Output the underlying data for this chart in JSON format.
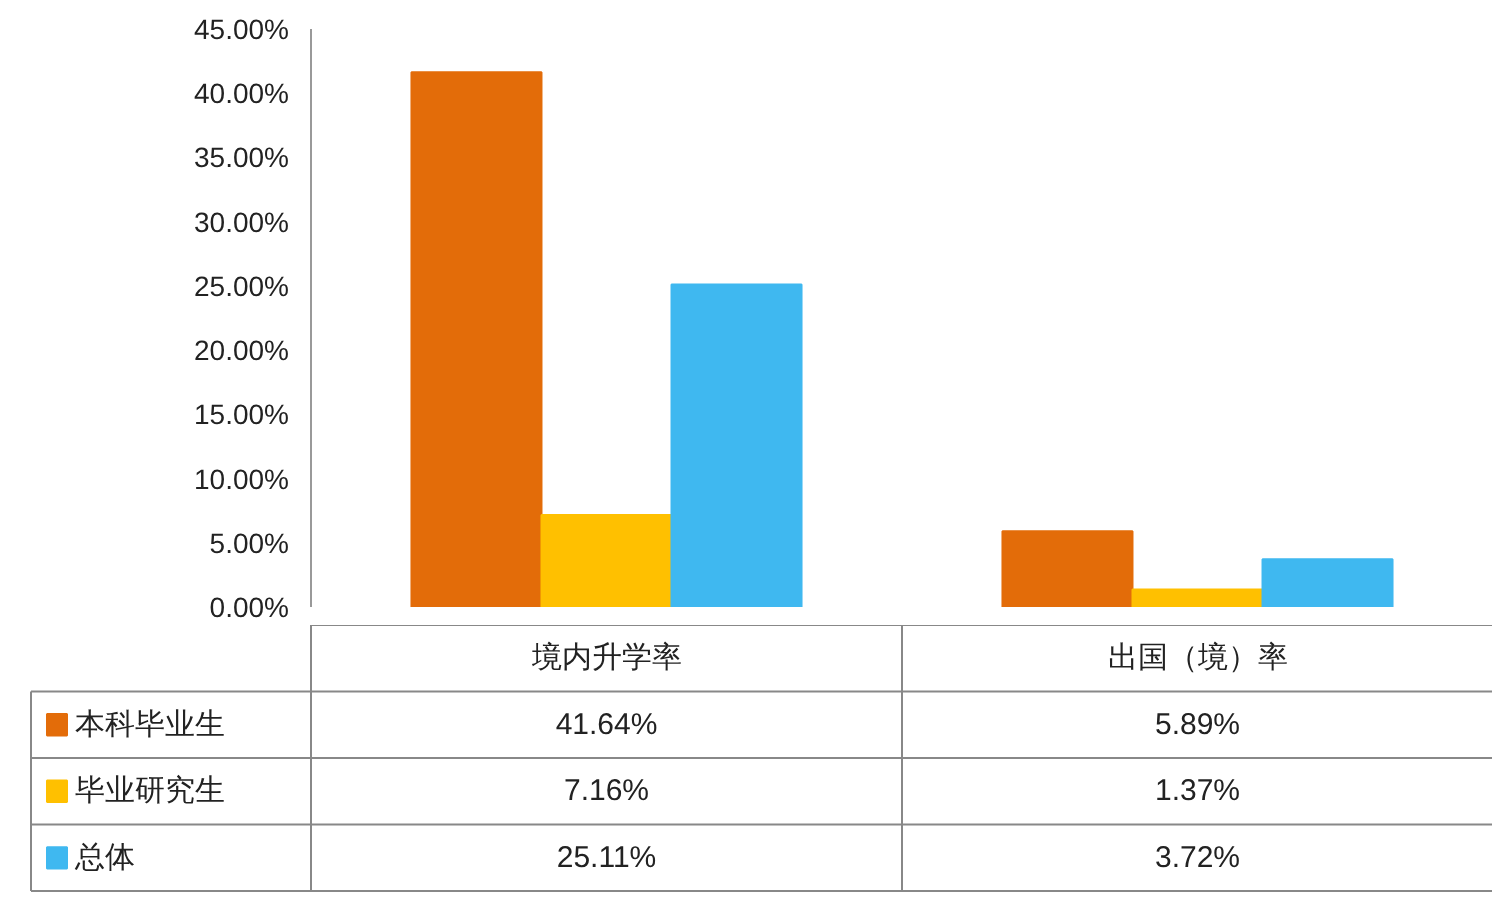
{
  "chart_data": {
    "type": "bar",
    "categories": [
      "境内升学率",
      "出国（境）率"
    ],
    "series": [
      {
        "name": "本科毕业生",
        "color": "#e36c09",
        "values": [
          41.64,
          5.89
        ],
        "value_labels": [
          "41.64%",
          "5.89%"
        ]
      },
      {
        "name": "毕业研究生",
        "color": "#ffc000",
        "values": [
          7.16,
          1.37
        ],
        "value_labels": [
          "7.16%",
          "1.37%"
        ]
      },
      {
        "name": "总体",
        "color": "#3fb8f0",
        "values": [
          25.11,
          3.72
        ],
        "value_labels": [
          "25.11%",
          "3.72%"
        ]
      }
    ],
    "ylim": [
      0,
      45
    ],
    "yticks": [
      {
        "value": 0,
        "label": "0.00%"
      },
      {
        "value": 5,
        "label": "5.00%"
      },
      {
        "value": 10,
        "label": "10.00%"
      },
      {
        "value": 15,
        "label": "15.00%"
      },
      {
        "value": 20,
        "label": "20.00%"
      },
      {
        "value": 25,
        "label": "25.00%"
      },
      {
        "value": 30,
        "label": "30.00%"
      },
      {
        "value": 35,
        "label": "35.00%"
      },
      {
        "value": 40,
        "label": "40.00%"
      },
      {
        "value": 45,
        "label": "45.00%"
      }
    ],
    "grid": false,
    "legend": "bottom left"
  }
}
